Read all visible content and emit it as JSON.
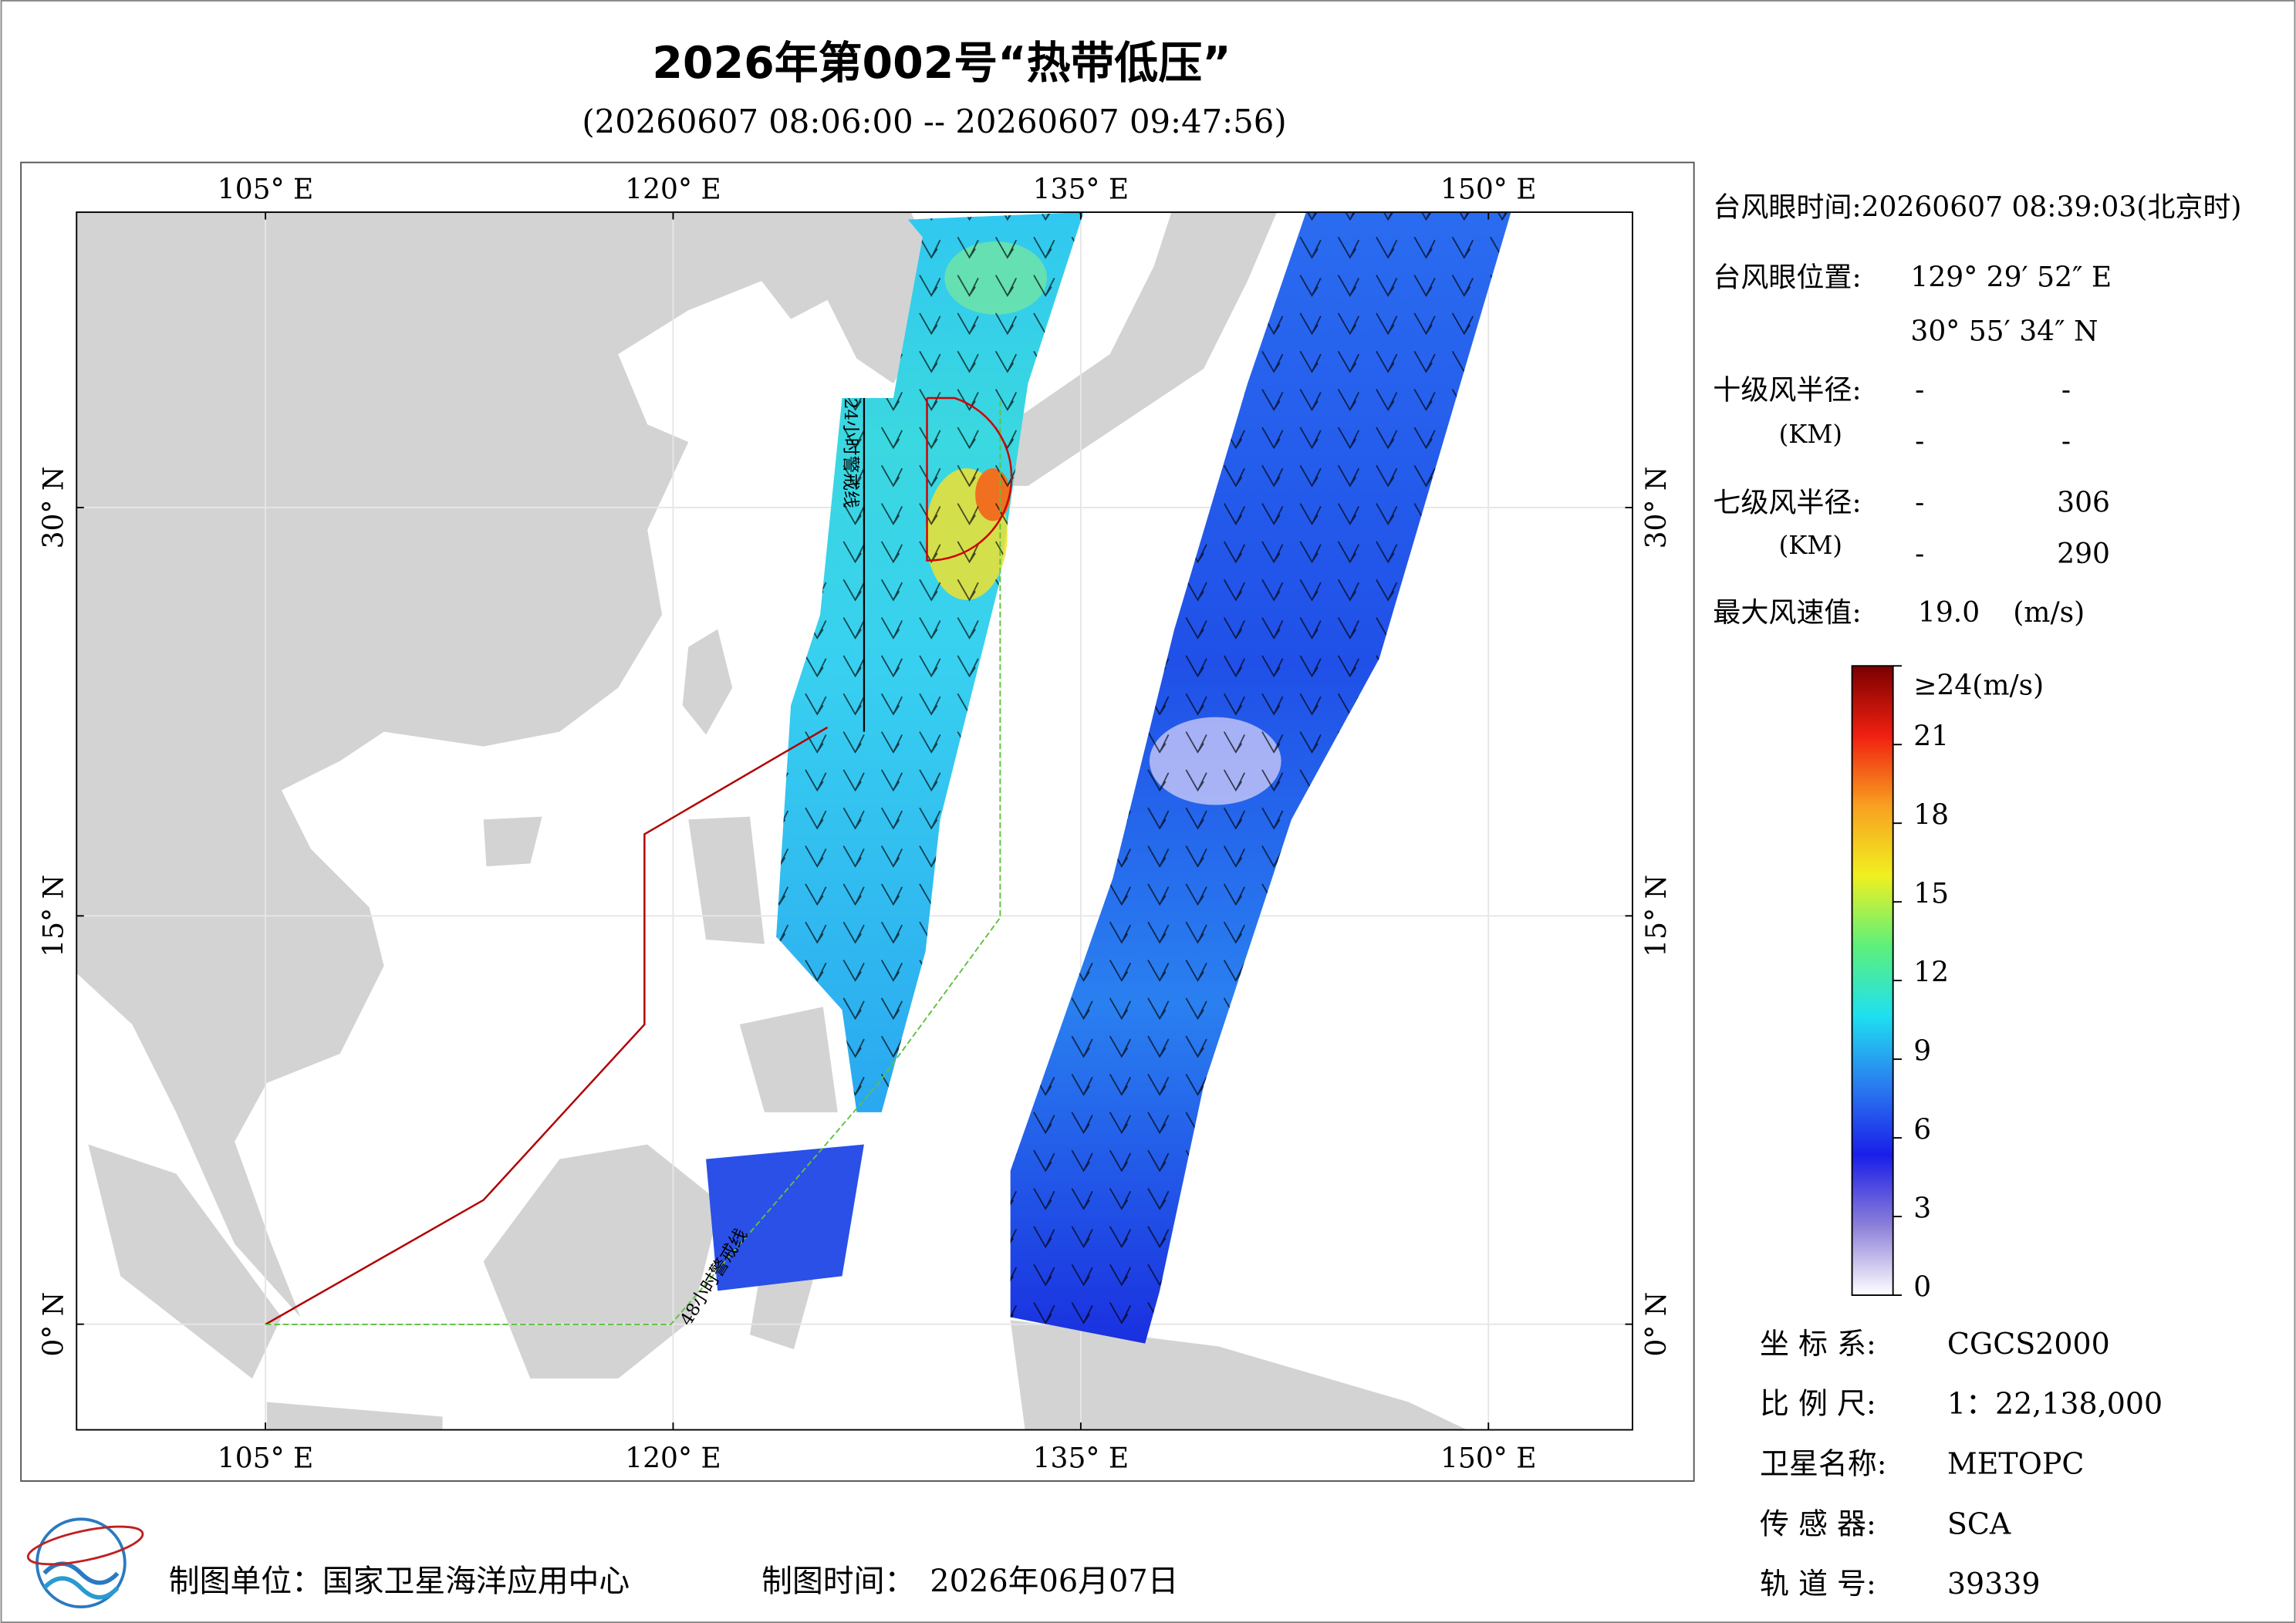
{
  "header": {
    "title": "2026年第002号“热带低压”",
    "subtitle": "(20260607 08:06:00 -- 20260607 09:47:56)"
  },
  "map": {
    "lonlim": [
      98.05,
      155.3
    ],
    "latlim": [
      -3.88,
      40.85
    ],
    "lon_ticks": [
      {
        "value": 105,
        "label": "105° E"
      },
      {
        "value": 120,
        "label": "120° E"
      },
      {
        "value": 135,
        "label": "135° E"
      },
      {
        "value": 150,
        "label": "150° E"
      }
    ],
    "lat_ticks": [
      {
        "value": 0,
        "label": "0° N"
      },
      {
        "value": 15,
        "label": "15° N"
      },
      {
        "value": 30,
        "label": "30° N"
      }
    ],
    "warning_24h": "24小时警戒线",
    "warning_48h": "48小时警戒线"
  },
  "info": {
    "eye_time": "台风眼时间:20260607 08:39:03(北京时)",
    "eye_position_label": "台风眼位置:",
    "eye_lon": "129° 29′ 52″ E",
    "eye_lat": "30° 55′ 34″ N",
    "r10_label": "十级风半径:",
    "r10_unit": "(KM)",
    "r10_values": [
      "-",
      "-",
      "-",
      "-"
    ],
    "r7_label": "七级风半径:",
    "r7_unit": "(KM)",
    "r7_values": [
      "-",
      "306",
      "-",
      "290"
    ],
    "max_wind_label": "最大风速值:",
    "max_wind": "19.0",
    "max_wind_unit": "(m/s)"
  },
  "colorbar": {
    "lim": [
      0,
      24
    ],
    "ticks": [
      0,
      3,
      6,
      9,
      12,
      15,
      18,
      21,
      {
        "value": 24,
        "label": "≥24(m/s)"
      }
    ],
    "colors": [
      "#ffffff",
      "#8c7fd8",
      "#1a1ee8",
      "#2a7cf0",
      "#1ee0f0",
      "#5ef07a",
      "#f0f020",
      "#f8a020",
      "#f02010",
      "#7a0000"
    ]
  },
  "meta": [
    {
      "label": "坐 标 系:",
      "value": "CGCS2000"
    },
    {
      "label": "比 例 尺:",
      "value": "1：22,138,000"
    },
    {
      "label": "卫星名称:",
      "value": "METOPC"
    },
    {
      "label": "传 感 器:",
      "value": "SCA"
    },
    {
      "label": "轨 道 号:",
      "value": "39339"
    }
  ],
  "footer": {
    "unit": "制图单位：国家卫星海洋应用中心",
    "time_label": "制图时间：",
    "time": "2026年06月07日"
  }
}
